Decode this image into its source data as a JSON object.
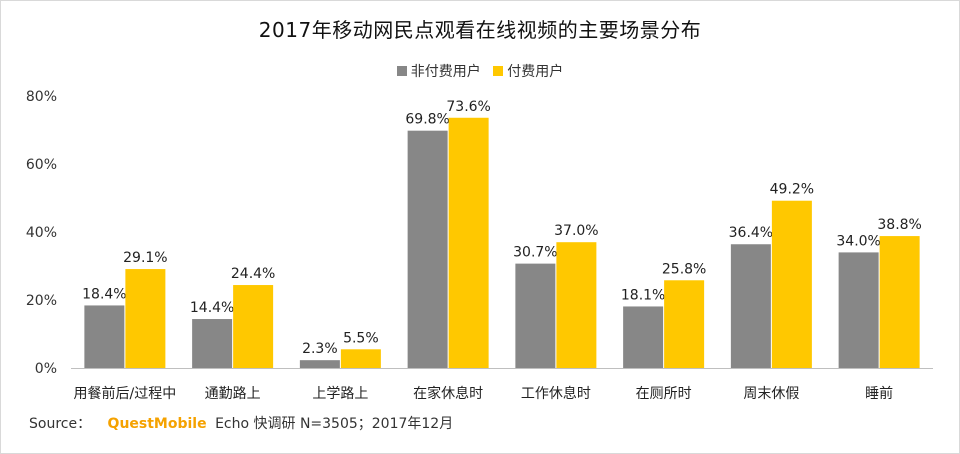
{
  "chart_data": {
    "type": "bar",
    "title": "2017年移动网民点观看在线视频的主要场景分布",
    "categories": [
      "用餐前后/过程中",
      "通勤路上",
      "上学路上",
      "在家休息时",
      "工作休息时",
      "在厕所时",
      "周末休假",
      "睡前"
    ],
    "series": [
      {
        "name": "非付费用户",
        "color": "#878787",
        "values": [
          18.4,
          14.4,
          2.3,
          69.8,
          30.7,
          18.1,
          36.4,
          34.0
        ],
        "labels": [
          "18.4%",
          "14.4%",
          "2.3%",
          "69.8%",
          "30.7%",
          "18.1%",
          "36.4%",
          "34.0%"
        ]
      },
      {
        "name": "付费用户",
        "color": "#ffc800",
        "values": [
          29.1,
          24.4,
          5.5,
          73.6,
          37.0,
          25.8,
          49.2,
          38.8
        ],
        "labels": [
          "29.1%",
          "24.4%",
          "5.5%",
          "73.6%",
          "37.0%",
          "25.8%",
          "49.2%",
          "38.8%"
        ]
      }
    ],
    "ylim": [
      0,
      80
    ],
    "yticks": [
      0,
      20,
      40,
      60,
      80
    ],
    "ytick_labels": [
      "0%",
      "20%",
      "40%",
      "60%",
      "80%"
    ],
    "legend_position": "top-center",
    "grid": false
  },
  "source": {
    "prefix": "Source：",
    "brand": "QuestMobile",
    "rest": "Echo 快调研 N=3505；2017年12月"
  }
}
